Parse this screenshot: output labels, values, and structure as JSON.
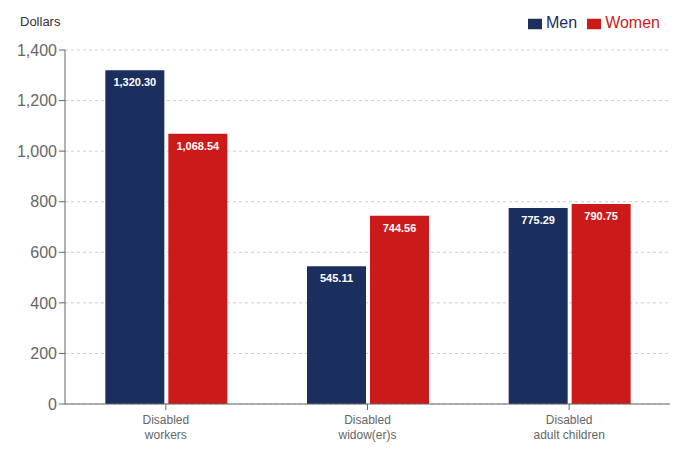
{
  "chart_data": {
    "type": "bar",
    "ylabel": "Dollars",
    "categories": [
      "Disabled\nworkers",
      "Disabled\nwidow(er)s",
      "Disabled\nadult children"
    ],
    "series": [
      {
        "name": "Men",
        "color": "#1b2f5e",
        "values": [
          1320.3,
          545.11,
          775.29
        ],
        "value_labels": [
          "1,320.30",
          "545.11",
          "775.29"
        ]
      },
      {
        "name": "Women",
        "color": "#cc1a1a",
        "values": [
          1068.54,
          744.56,
          790.75
        ],
        "value_labels": [
          "1,068.54",
          "744.56",
          "790.75"
        ]
      }
    ],
    "ylim": [
      0,
      1400
    ],
    "yticks": [
      0,
      200,
      400,
      600,
      800,
      {
        "value": 1000,
        "label": "1,000"
      },
      {
        "value": 1200,
        "label": "1,200"
      },
      {
        "value": 1400,
        "label": "1,400"
      }
    ],
    "grid": true,
    "legend": "upper right",
    "data_labels": true
  }
}
